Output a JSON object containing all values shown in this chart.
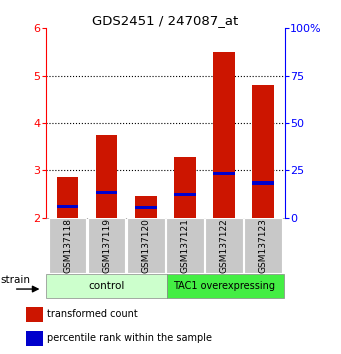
{
  "title": "GDS2451 / 247087_at",
  "samples": [
    "GSM137118",
    "GSM137119",
    "GSM137120",
    "GSM137121",
    "GSM137122",
    "GSM137123"
  ],
  "transformed_counts": [
    2.85,
    3.75,
    2.45,
    3.28,
    5.5,
    4.8
  ],
  "blue_values": [
    2.2,
    2.5,
    2.18,
    2.45,
    2.9,
    2.7
  ],
  "y_min": 2,
  "y_max": 6,
  "y_ticks": [
    2,
    3,
    4,
    5,
    6
  ],
  "right_y_ticks": [
    0,
    25,
    50,
    75,
    100
  ],
  "right_y_labels": [
    "0",
    "25",
    "50",
    "75",
    "100%"
  ],
  "bar_color": "#cc1500",
  "blue_color": "#0000cc",
  "bg_label": "#c8c8c8",
  "group1_label": "control",
  "group2_label": "TAC1 overexpressing",
  "group1_color": "#ccffcc",
  "group2_color": "#44ee44",
  "legend_red": "transformed count",
  "legend_blue": "percentile rank within the sample",
  "strain_label": "strain",
  "bar_width": 0.55,
  "blue_bar_height": 0.07
}
